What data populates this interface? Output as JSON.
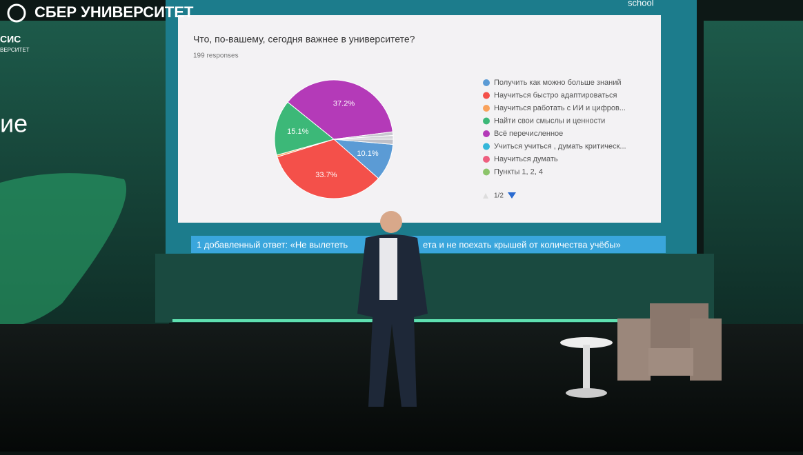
{
  "scene": {
    "brand": "СБЕР УНИВЕРСИТЕТ",
    "school": "school",
    "side_logo": [
      "СИС",
      "ВЕРСИТЕТ"
    ],
    "side_text": "ие",
    "caption": [
      "1 добавленный ответ: «Не вылететь",
      "ета и не поехать крышей от количества учёбы»"
    ]
  },
  "chart_data": {
    "type": "pie",
    "title": "Что, по-вашему, сегодня важнее в университете?",
    "subtitle": "199 responses",
    "categories": [
      "Получить как можно больше знаний",
      "Научиться быстро адаптироваться",
      "Научиться работать с ИИ и цифров...",
      "Найти свои смыслы и ценности",
      "Всё перечисленное",
      "Учиться учиться , думать критическ...",
      "Научиться думать",
      "Пункты 1, 2, 4"
    ],
    "values": [
      10.1,
      33.7,
      0.5,
      15.1,
      37.2,
      1.0,
      1.0,
      1.4
    ],
    "value_labels": [
      "10.1%",
      "33.7%",
      null,
      "15.1%",
      "37.2%",
      null,
      null,
      null
    ],
    "colors": [
      "#5b9bd5",
      "#f4504a",
      "#f9a25c",
      "#3cb878",
      "#b43ab8",
      "#c8c8d0",
      "#d4d4da",
      "#bfc0c8"
    ],
    "legend_colors": [
      "#5b9bd5",
      "#f4504a",
      "#f9a25c",
      "#3cb878",
      "#b43ab8",
      "#35b7d9",
      "#ee5f7f",
      "#8cc46a"
    ],
    "page": "1/2"
  }
}
